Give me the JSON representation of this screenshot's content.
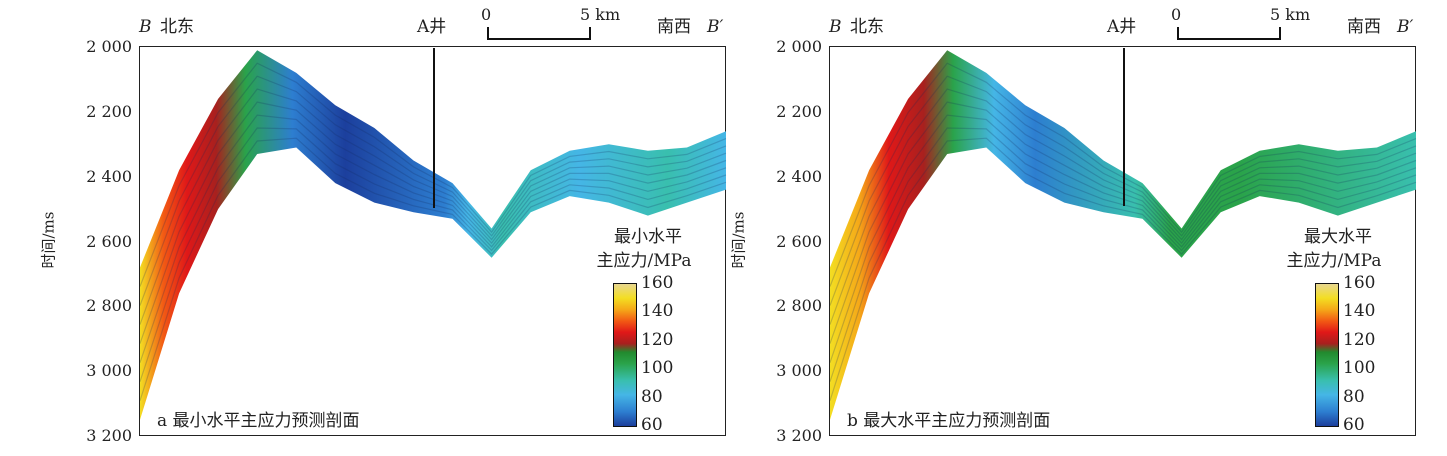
{
  "panels": [
    {
      "id": "a",
      "header": {
        "left_letter": "B",
        "left_dir": "北东",
        "well": "A井",
        "scale_start": "0",
        "scale_end": "5 km",
        "right_dir": "南西",
        "right_letter": "B′"
      },
      "ylabel": "时间/ms",
      "colorbar_title_line1": "最小水平",
      "colorbar_title_line2": "主应力/MPa",
      "caption": "a 最小水平主应力预测剖面"
    },
    {
      "id": "b",
      "header": {
        "left_letter": "B",
        "left_dir": "北东",
        "well": "A井",
        "scale_start": "0",
        "scale_end": "5 km",
        "right_dir": "南西",
        "right_letter": "B′"
      },
      "ylabel": "时间/ms",
      "colorbar_title_line1": "最大水平",
      "colorbar_title_line2": "主应力/MPa",
      "caption": "b 最大水平主应力预测剖面"
    }
  ],
  "chart_data": {
    "type": "heatmap",
    "yaxis": {
      "label": "时间/ms",
      "ticks": [
        "2 000",
        "2 200",
        "2 400",
        "2 600",
        "2 800",
        "3 000",
        "3 200"
      ],
      "range": [
        2000,
        3200
      ],
      "direction": "down"
    },
    "colorbar": {
      "ticks": [
        "160",
        "140",
        "120",
        "100",
        "80",
        "60"
      ],
      "range": [
        60,
        160
      ],
      "colors": [
        "#1c3f9d",
        "#2d7ed0",
        "#45b6e6",
        "#39bfae",
        "#2aa34a",
        "#a8201e",
        "#e01818",
        "#f25a14",
        "#f5a818",
        "#f3de22"
      ]
    },
    "profile": {
      "distance_km": [
        0,
        2,
        4,
        6,
        8,
        10,
        12,
        14,
        16,
        18,
        20,
        22,
        24,
        26,
        28,
        30
      ],
      "top_ms": [
        2680,
        2380,
        2160,
        2010,
        2080,
        2180,
        2250,
        2350,
        2420,
        2560,
        2380,
        2320,
        2300,
        2320,
        2310,
        2260
      ],
      "bottom_ms": [
        3150,
        2760,
        2500,
        2330,
        2310,
        2420,
        2480,
        2510,
        2530,
        2650,
        2510,
        2460,
        2480,
        2520,
        2480,
        2440
      ]
    }
  },
  "colors": {
    "axis": "#222222",
    "deep_blue": "#1c3f9d",
    "cyan": "#45b6e6",
    "green": "#2aa34a",
    "red": "#e01818",
    "yellow": "#f3de22"
  }
}
